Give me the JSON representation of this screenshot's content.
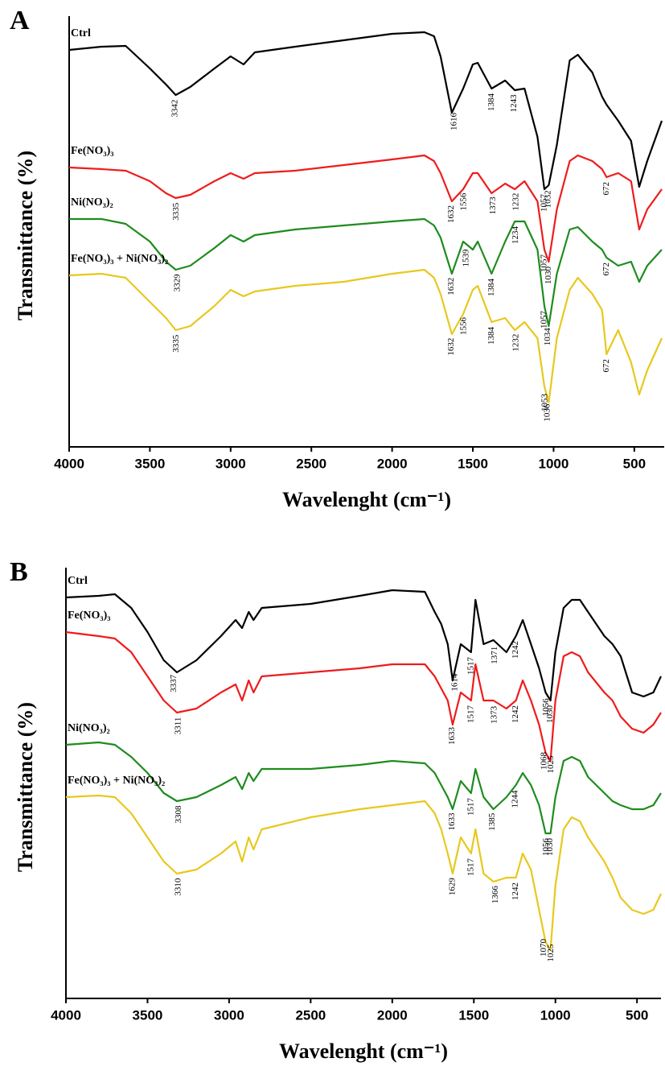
{
  "chart_data": [
    {
      "type": "line",
      "panel_label": "A",
      "x_label": "Wavelenght (cm⁻¹)",
      "y_label": "Transmittance (%)",
      "xlim": [
        4000,
        315
      ],
      "ylim": [
        0,
        105
      ],
      "xticks": [
        4000,
        3500,
        3000,
        2500,
        2000,
        1500,
        1000,
        500
      ],
      "x": [
        4000,
        3800,
        3650,
        3500,
        3400,
        3340,
        3250,
        3100,
        3000,
        2920,
        2850,
        2600,
        2300,
        2000,
        1800,
        1740,
        1700,
        1630,
        1560,
        1500,
        1470,
        1384,
        1300,
        1240,
        1180,
        1100,
        1057,
        1030,
        980,
        900,
        850,
        760,
        700,
        672,
        600,
        520,
        470,
        420,
        330
      ],
      "series": [
        {
          "name": "Ctrl",
          "color": "#000000",
          "peaks": [
            3342,
            1616,
            1384,
            1243,
            1057,
            1032
          ],
          "values": [
            98.6,
            99.4,
            99.6,
            94,
            90,
            87.4,
            89.4,
            94,
            97,
            95,
            98,
            99.4,
            101,
            102.6,
            103,
            102,
            97,
            83,
            89,
            95,
            95.4,
            89,
            91,
            88.6,
            89,
            77,
            64,
            65,
            75,
            96,
            97.4,
            93,
            87,
            85,
            81,
            76,
            64.6,
            71,
            81
          ]
        },
        {
          "name": "Fe(NO₃)₃",
          "color": "#ee1c1c",
          "peaks": [
            3335,
            1632,
            1556,
            1373,
            1232,
            1057,
            1030,
            672
          ],
          "values": [
            69.4,
            69,
            68.6,
            66,
            63,
            61.8,
            62.6,
            66,
            68,
            66.6,
            68,
            68.6,
            70,
            71.4,
            72.4,
            71,
            68,
            61,
            64,
            68,
            68,
            63,
            65.4,
            64,
            66,
            61,
            49,
            46,
            59,
            71,
            72.4,
            71,
            69,
            67,
            68,
            66,
            54,
            59,
            64
          ]
        },
        {
          "name": "Ni(NO₃)₂",
          "color": "#1e8c1e",
          "peaks": [
            3329,
            1632,
            1539,
            1384,
            1234,
            1057,
            1034,
            672
          ],
          "values": [
            56.6,
            56.6,
            55.4,
            51,
            46,
            44,
            45,
            49.4,
            52.6,
            51,
            52.6,
            54,
            55,
            56,
            56.6,
            55,
            52,
            43,
            51,
            49,
            51,
            43,
            51,
            56,
            56,
            49,
            35,
            30,
            43,
            54,
            54.6,
            51,
            49,
            47,
            45,
            46,
            41,
            45,
            49
          ]
        },
        {
          "name": "Fe(NO₃)₃ + Ni(NO₃)₂",
          "color": "#e8c81e",
          "peaks": [
            3335,
            1632,
            1556,
            1384,
            1232,
            1053,
            1036,
            672
          ],
          "values": [
            42.6,
            43,
            42,
            36,
            32,
            29,
            30,
            35,
            39,
            37.4,
            38.6,
            40,
            41,
            43,
            44,
            42,
            38,
            28,
            33,
            39,
            40,
            31,
            32,
            29,
            31,
            27,
            15,
            11,
            27,
            39,
            42,
            38,
            34,
            23,
            29,
            21,
            13,
            19,
            27
          ]
        }
      ]
    },
    {
      "type": "line",
      "panel_label": "B",
      "x_label": "Wavelenght (cm⁻¹)",
      "y_label": "Transmittance (%)",
      "xlim": [
        4000,
        353
      ],
      "ylim": [
        0,
        105
      ],
      "xticks": [
        4000,
        3500,
        3000,
        2500,
        2000,
        1500,
        1000,
        500
      ],
      "x": [
        4000,
        3800,
        3700,
        3600,
        3500,
        3400,
        3320,
        3200,
        3050,
        2960,
        2920,
        2880,
        2850,
        2800,
        2500,
        2200,
        2000,
        1800,
        1740,
        1700,
        1660,
        1630,
        1580,
        1517,
        1490,
        1440,
        1380,
        1300,
        1242,
        1200,
        1150,
        1100,
        1060,
        1030,
        1000,
        950,
        900,
        850,
        800,
        700,
        650,
        600,
        530,
        460,
        400,
        353
      ],
      "series": [
        {
          "name": "Ctrl",
          "color": "#000000",
          "peaks": [
            3337,
            1614,
            1517,
            1371,
            1242,
            1056,
            1030
          ],
          "values": [
            99.6,
            100,
            100.4,
            97,
            91,
            84,
            81,
            84,
            90,
            94,
            92,
            96,
            94,
            97,
            98,
            100,
            101.4,
            101,
            96,
            93,
            88,
            79,
            88,
            86,
            99,
            88,
            89,
            86,
            90,
            94,
            88,
            82,
            76,
            74,
            86,
            97,
            99,
            99,
            96,
            90,
            88,
            85,
            76,
            75,
            76,
            80
          ]
        },
        {
          "name": "Fe(NO₃)₃",
          "color": "#ee1c1c",
          "peaks": [
            3311,
            1633,
            1517,
            1373,
            1242,
            1068,
            1025
          ],
          "values": [
            91,
            90,
            89.4,
            86,
            80,
            74,
            71,
            72,
            76,
            78,
            74,
            79,
            76,
            80,
            81,
            82,
            83,
            83,
            80,
            77,
            74,
            68,
            76,
            74,
            83,
            74,
            74,
            72,
            74,
            79,
            74,
            68,
            61,
            59,
            74,
            85,
            86,
            85,
            81,
            76,
            74,
            70,
            67,
            66,
            68,
            71
          ]
        },
        {
          "name": "Ni(NO₃)₂",
          "color": "#1e8c1e",
          "peaks": [
            3308,
            1633,
            1517,
            1385,
            1244,
            1056,
            1030
          ],
          "values": [
            63,
            63.6,
            63,
            60,
            56,
            51,
            49,
            50,
            53,
            55,
            52,
            56,
            54,
            57,
            57,
            58,
            59,
            58.4,
            56,
            53,
            50,
            47,
            54,
            51,
            57,
            50,
            47,
            50,
            53,
            56,
            53,
            48,
            41,
            41,
            50,
            59,
            60,
            59,
            55,
            51,
            49,
            48,
            47,
            47,
            48,
            51
          ]
        },
        {
          "name": "Fe(NO₃)₃ + Ni(NO₃)₂",
          "color": "#e8c81e",
          "peaks": [
            3310,
            1629,
            1517,
            1366,
            1242,
            1070,
            1025
          ],
          "values": [
            50,
            50.4,
            50,
            46,
            40,
            34,
            31,
            32,
            36,
            39,
            34,
            40,
            37,
            42,
            45,
            47,
            48,
            49,
            46,
            42,
            36,
            31,
            40,
            36,
            42,
            31,
            29,
            30,
            30,
            36,
            32,
            22,
            14,
            12,
            28,
            42,
            45,
            44,
            40,
            34,
            30,
            25,
            22,
            21,
            22,
            26
          ]
        }
      ]
    }
  ]
}
